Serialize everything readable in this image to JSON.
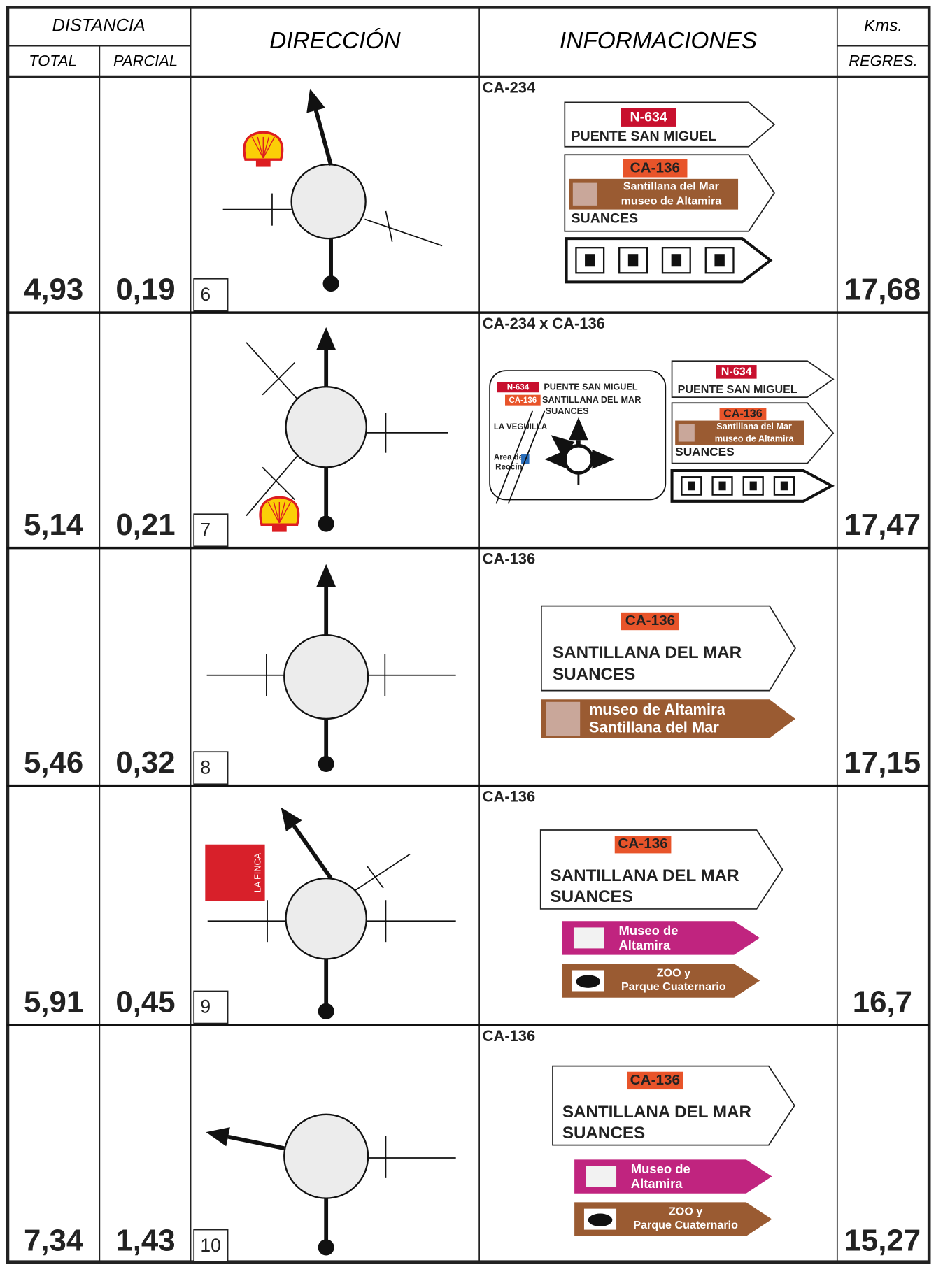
{
  "header": {
    "distancia": "DISTANCIA",
    "total": "TOTAL",
    "parcial": "PARCIAL",
    "direccion": "DIRECCIÓN",
    "informaciones": "INFORMACIONES",
    "kms": "Kms.",
    "regres": "REGRES."
  },
  "rows": [
    {
      "total": "4,93",
      "parcial": "0,19",
      "number": "6",
      "regres": "17,68",
      "road": "CA-234",
      "sign1": {
        "road": "N-634",
        "text": "PUENTE SAN MIGUEL"
      },
      "sign2": {
        "road": "CA-136",
        "brown": [
          "Santillana del Mar",
          "museo de Altamira"
        ],
        "text": "SUANCES"
      }
    },
    {
      "total": "5,14",
      "parcial": "0,21",
      "number": "7",
      "regres": "17,47",
      "road": "CA-234 x CA-136",
      "panel": {
        "lines": [
          [
            "N-634",
            "PUENTE SAN MIGUEL"
          ],
          [
            "CA-136",
            "SANTILLANA DEL MAR"
          ]
        ],
        "text": "SUANCES",
        "place": "LA VEGUILLA",
        "area": [
          "Area de",
          "Reocín"
        ]
      },
      "sign1": {
        "road": "N-634",
        "text": "PUENTE SAN MIGUEL"
      },
      "sign2": {
        "road": "CA-136",
        "brown": [
          "Santillana del Mar",
          "museo de Altamira"
        ],
        "text": "SUANCES"
      }
    },
    {
      "total": "5,46",
      "parcial": "0,32",
      "number": "8",
      "regres": "17,15",
      "road": "CA-136",
      "sign": {
        "road": "CA-136",
        "lines": [
          "SANTILLANA DEL MAR",
          "SUANCES"
        ]
      },
      "brown": [
        "museo de Altamira",
        "Santillana del Mar"
      ]
    },
    {
      "total": "5,91",
      "parcial": "0,45",
      "number": "9",
      "regres": "16,7",
      "road": "CA-136",
      "sign": {
        "road": "CA-136",
        "lines": [
          "SANTILLANA DEL MAR",
          "SUANCES"
        ]
      },
      "magenta": [
        "Museo de",
        "Altamira"
      ],
      "brown": [
        "ZOO y",
        "Parque Cuaternario"
      ],
      "logo": "LA FINCA"
    },
    {
      "total": "7,34",
      "parcial": "1,43",
      "number": "10",
      "regres": "15,27",
      "road": "CA-136",
      "sign": {
        "road": "CA-136",
        "lines": [
          "SANTILLANA DEL MAR",
          "SUANCES"
        ]
      },
      "magenta": [
        "Museo de",
        "Altamira"
      ],
      "brown": [
        "ZOO y",
        "Parque Cuaternario"
      ]
    }
  ]
}
